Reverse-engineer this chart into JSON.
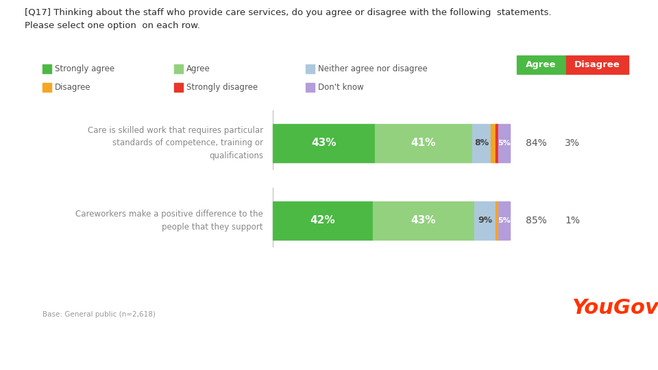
{
  "title_line1": "[Q17] Thinking about the staff who provide care services, do you agree or disagree with the following  statements.",
  "title_line2": "Please select one option  on each row.",
  "rows": [
    {
      "label": "Care is skilled work that requires particular\nstandards of competence, training or\nqualifications",
      "strongly_agree": 43,
      "agree": 41,
      "neither": 8,
      "disagree": 2,
      "strongly_disagree": 1,
      "dont_know": 5,
      "total_agree": "84%",
      "total_disagree": "3%"
    },
    {
      "label": "Careworkers make a positive difference to the\npeople that they support",
      "strongly_agree": 42,
      "agree": 43,
      "neither": 9,
      "disagree": 1,
      "strongly_disagree": 0,
      "dont_know": 5,
      "total_agree": "85%",
      "total_disagree": "1%"
    }
  ],
  "colors": {
    "strongly_agree": "#4cb944",
    "agree": "#93d17e",
    "neither": "#adc8dc",
    "disagree": "#f5a623",
    "strongly_disagree": "#e8362a",
    "dont_know": "#b39ddb"
  },
  "agree_btn_color": "#4cb944",
  "disagree_btn_color": "#e8362a",
  "footer_bg": "#b2dfdb",
  "base_text": "Base: General public (n=2,618)",
  "background_color": "#ffffff"
}
